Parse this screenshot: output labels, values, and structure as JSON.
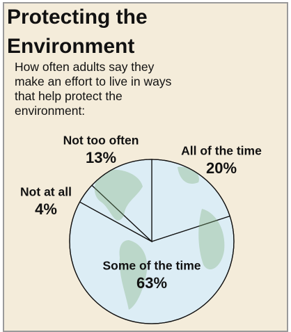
{
  "chart_data": {
    "type": "pie",
    "title": "Protecting the Environment",
    "subtitle": "How often adults say they make an effort to live in ways that help protect the environment:",
    "categories": [
      "All of the time",
      "Some of the time",
      "Not at all",
      "Not too often"
    ],
    "values": [
      20,
      63,
      4,
      13
    ],
    "value_labels": [
      "20%",
      "63%",
      "4%",
      "13%"
    ],
    "color": "#dcedf5"
  }
}
